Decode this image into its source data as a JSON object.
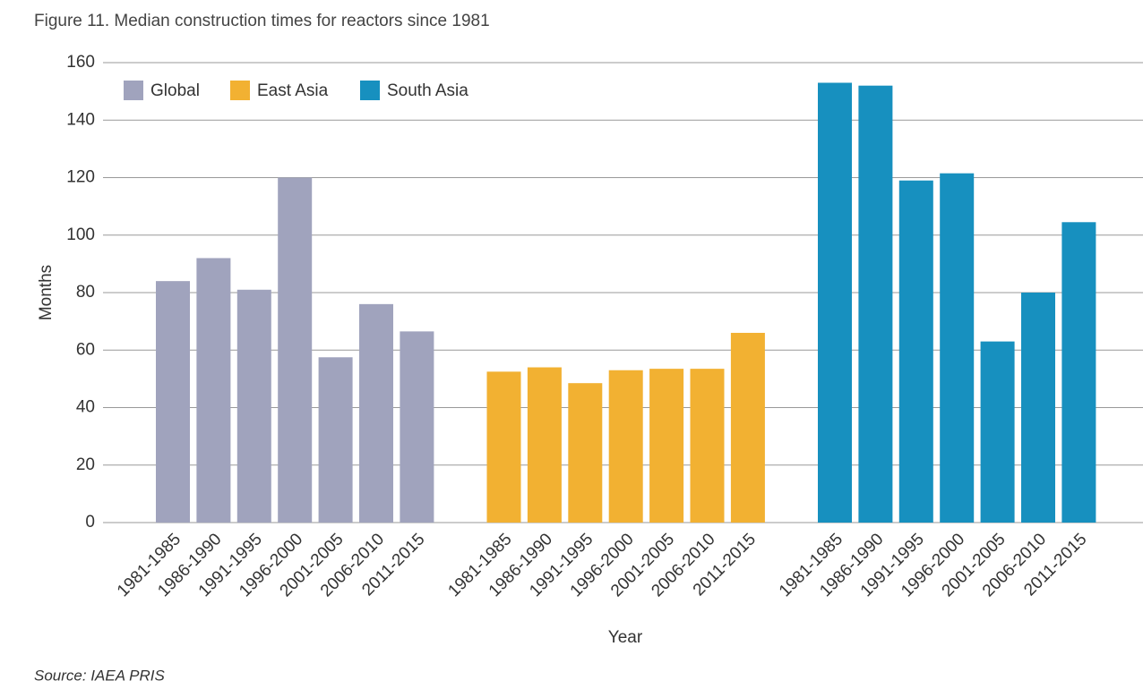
{
  "chart_data": {
    "type": "bar",
    "title": "Figure 11. Median construction times for reactors since 1981",
    "source": "Source: IAEA PRIS",
    "x_label": "Year",
    "y_label": "Months",
    "categories": [
      "1981-1985",
      "1986-1990",
      "1991-1995",
      "1996-2000",
      "2001-2005",
      "2006-2010",
      "2011-2015"
    ],
    "series": [
      {
        "name": "Global",
        "color": "#a0a3bd",
        "values": [
          84,
          92,
          81,
          120,
          57.5,
          76,
          66.5
        ]
      },
      {
        "name": "East Asia",
        "color": "#f2b132",
        "values": [
          52.5,
          54,
          48.5,
          53,
          53.5,
          53.5,
          66
        ]
      },
      {
        "name": "South Asia",
        "color": "#1790bf",
        "values": [
          153,
          152,
          119,
          121.5,
          63,
          80,
          104.5
        ]
      }
    ],
    "ylim": [
      0,
      160
    ],
    "yticks": [
      0,
      20,
      40,
      60,
      80,
      100,
      120,
      140,
      160
    ],
    "grid": true,
    "legend": "top-left"
  }
}
